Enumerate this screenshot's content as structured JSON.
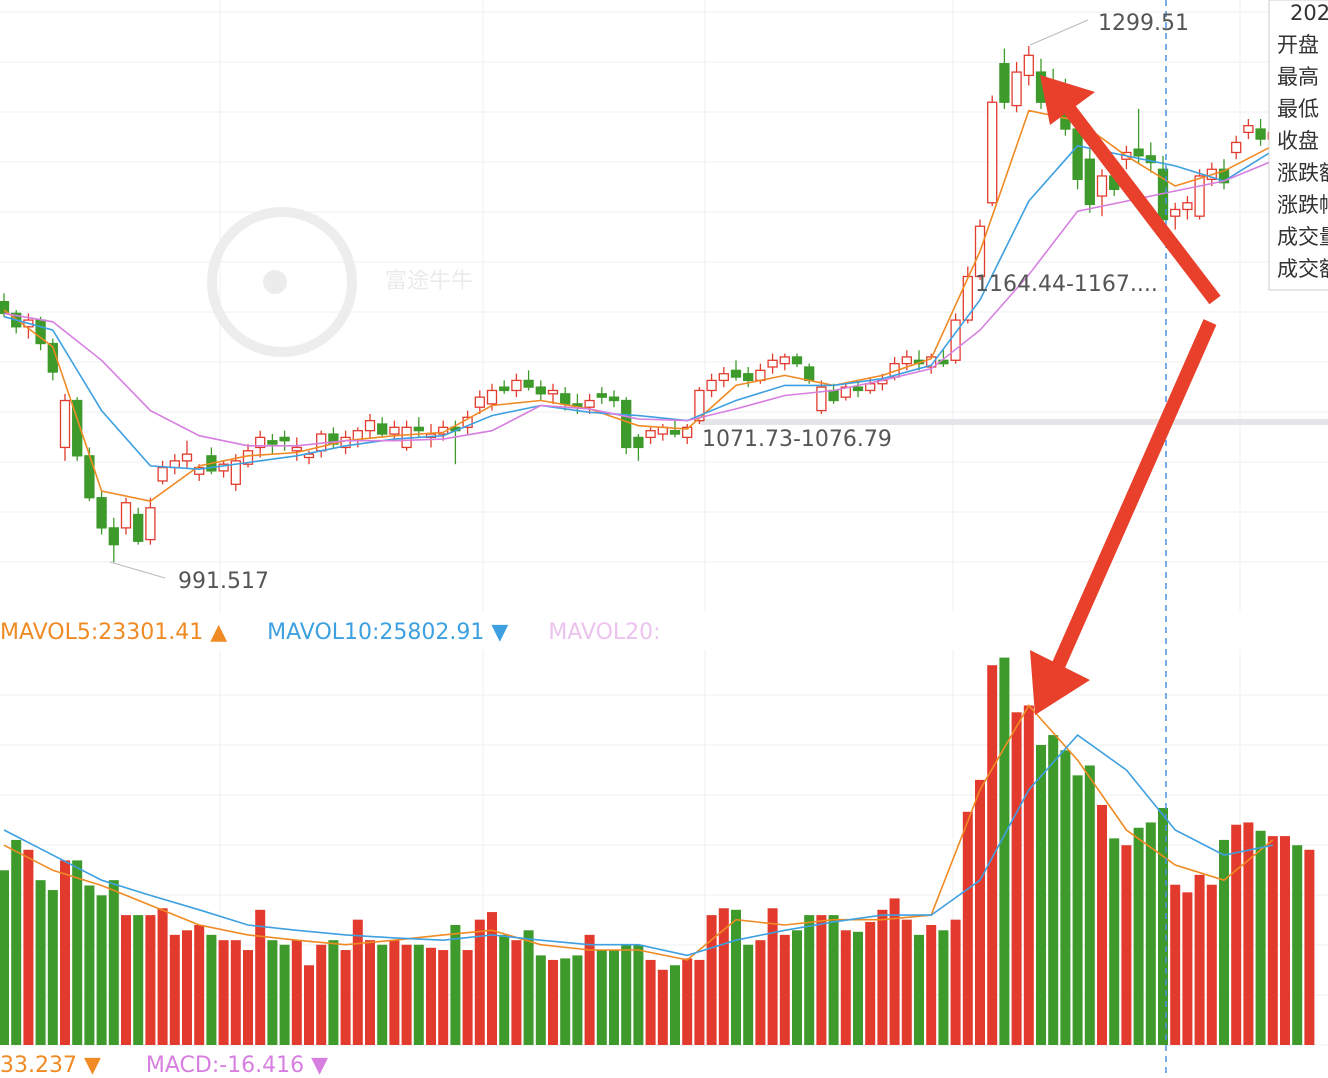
{
  "chart_data": [
    {
      "type": "candlestick",
      "up_color": "#e23b2e",
      "down_color": "#3d9a2b",
      "ylim": [
        963,
        1327
      ],
      "ohlc": [
        [
          1147,
          1152,
          1138,
          1140
        ],
        [
          1140,
          1142,
          1128,
          1132
        ],
        [
          1132,
          1140,
          1125,
          1136
        ],
        [
          1136,
          1138,
          1118,
          1122
        ],
        [
          1122,
          1125,
          1100,
          1105
        ],
        [
          1060,
          1092,
          1052,
          1088
        ],
        [
          1088,
          1090,
          1052,
          1055
        ],
        [
          1055,
          1060,
          1028,
          1030
        ],
        [
          1030,
          1034,
          1008,
          1012
        ],
        [
          1012,
          1018,
          991.517,
          1002
        ],
        [
          1012,
          1030,
          1008,
          1027
        ],
        [
          1020,
          1024,
          1002,
          1004
        ],
        [
          1005,
          1030,
          1002,
          1024
        ],
        [
          1040,
          1052,
          1038,
          1048
        ],
        [
          1048,
          1056,
          1044,
          1052
        ],
        [
          1052,
          1064,
          1048,
          1056
        ],
        [
          1044,
          1050,
          1040,
          1048
        ],
        [
          1055,
          1060,
          1044,
          1046
        ],
        [
          1046,
          1052,
          1042,
          1050
        ],
        [
          1038,
          1056,
          1034,
          1052
        ],
        [
          1050,
          1062,
          1048,
          1058
        ],
        [
          1060,
          1070,
          1054,
          1066
        ],
        [
          1064,
          1068,
          1056,
          1062
        ],
        [
          1066,
          1070,
          1058,
          1064
        ],
        [
          1058,
          1066,
          1052,
          1060
        ],
        [
          1054,
          1058,
          1050,
          1056
        ],
        [
          1058,
          1070,
          1054,
          1068
        ],
        [
          1068,
          1072,
          1060,
          1062
        ],
        [
          1060,
          1070,
          1056,
          1066
        ],
        [
          1064,
          1072,
          1060,
          1070
        ],
        [
          1070,
          1080,
          1066,
          1076
        ],
        [
          1074,
          1078,
          1066,
          1068
        ],
        [
          1068,
          1076,
          1064,
          1072
        ],
        [
          1060,
          1076,
          1058,
          1072
        ],
        [
          1072,
          1078,
          1066,
          1070
        ],
        [
          1066,
          1074,
          1060,
          1068
        ],
        [
          1068,
          1076,
          1064,
          1072
        ],
        [
          1072,
          1076,
          1050,
          1070
        ],
        [
          1072,
          1082,
          1068,
          1078
        ],
        [
          1084,
          1094,
          1080,
          1090
        ],
        [
          1086,
          1098,
          1082,
          1094
        ],
        [
          1096,
          1100,
          1092,
          1094
        ],
        [
          1094,
          1104,
          1090,
          1100
        ],
        [
          1100,
          1106,
          1094,
          1096
        ],
        [
          1096,
          1100,
          1088,
          1092
        ],
        [
          1092,
          1098,
          1086,
          1094
        ],
        [
          1092,
          1096,
          1082,
          1086
        ],
        [
          1086,
          1092,
          1080,
          1084
        ],
        [
          1084,
          1092,
          1080,
          1088
        ],
        [
          1092,
          1096,
          1086,
          1090
        ],
        [
          1090,
          1094,
          1084,
          1088
        ],
        [
          1088,
          1090,
          1056,
          1060
        ],
        [
          1066,
          1068,
          1052,
          1060
        ],
        [
          1066,
          1072,
          1062,
          1070
        ],
        [
          1068,
          1074,
          1064,
          1072
        ],
        [
          1070,
          1076,
          1066,
          1068
        ],
        [
          1066,
          1074,
          1062,
          1072
        ],
        [
          1076,
          1096,
          1074,
          1094
        ],
        [
          1094,
          1104,
          1090,
          1100
        ],
        [
          1100,
          1108,
          1096,
          1104
        ],
        [
          1106,
          1112,
          1100,
          1102
        ],
        [
          1104,
          1108,
          1096,
          1100
        ],
        [
          1100,
          1110,
          1098,
          1106
        ],
        [
          1108,
          1116,
          1104,
          1112
        ],
        [
          1110,
          1116,
          1106,
          1114
        ],
        [
          1114,
          1116,
          1108,
          1110
        ],
        [
          1108,
          1110,
          1098,
          1100
        ],
        [
          1082,
          1100,
          1080,
          1096
        ],
        [
          1094,
          1098,
          1086,
          1088
        ],
        [
          1090,
          1098,
          1088,
          1096
        ],
        [
          1096,
          1100,
          1090,
          1094
        ],
        [
          1094,
          1102,
          1092,
          1098
        ],
        [
          1098,
          1104,
          1094,
          1100
        ],
        [
          1102,
          1114,
          1100,
          1110
        ],
        [
          1110,
          1118,
          1106,
          1114
        ],
        [
          1112,
          1118,
          1106,
          1110
        ],
        [
          1108,
          1116,
          1104,
          1114
        ],
        [
          1112,
          1118,
          1108,
          1110
        ],
        [
          1112,
          1140,
          1110,
          1136
        ],
        [
          1136,
          1168,
          1134,
          1162
        ],
        [
          1162,
          1196,
          1160,
          1192
        ],
        [
          1206,
          1270,
          1204,
          1266
        ],
        [
          1289,
          1298,
          1262,
          1266
        ],
        [
          1264,
          1290,
          1260,
          1284
        ],
        [
          1282,
          1299.51,
          1276,
          1294
        ],
        [
          1284,
          1292,
          1262,
          1266
        ],
        [
          1276,
          1286,
          1260,
          1266
        ],
        [
          1272,
          1280,
          1246,
          1250
        ],
        [
          1250,
          1256,
          1214,
          1220
        ],
        [
          1232,
          1238,
          1200,
          1205
        ],
        [
          1210,
          1226,
          1198,
          1222
        ],
        [
          1222,
          1230,
          1210,
          1214
        ],
        [
          1232,
          1240,
          1226,
          1236
        ],
        [
          1238,
          1262,
          1230,
          1234
        ],
        [
          1234,
          1242,
          1224,
          1230
        ],
        [
          1226,
          1234,
          1190,
          1196
        ],
        [
          1198,
          1206,
          1190,
          1202
        ],
        [
          1202,
          1210,
          1196,
          1206
        ],
        [
          1198,
          1226,
          1196,
          1222
        ],
        [
          1220,
          1230,
          1216,
          1226
        ],
        [
          1226,
          1232,
          1214,
          1218
        ],
        [
          1236,
          1246,
          1232,
          1242
        ],
        [
          1248,
          1256,
          1244,
          1252
        ],
        [
          1250,
          1256,
          1240,
          1244
        ],
        [
          1244,
          1252,
          1238,
          1248
        ],
        [
          1250,
          1256,
          1244,
          1252
        ],
        [
          1252,
          1258,
          1246,
          1250
        ],
        [
          1250,
          1256,
          1244,
          1254
        ]
      ],
      "lines": [
        {
          "color": "#f08a24",
          "x": [
            0,
            4,
            8,
            12,
            16,
            20,
            24,
            28,
            32,
            36,
            40,
            44,
            48,
            52,
            56,
            60,
            64,
            68,
            72,
            76,
            80,
            84,
            88,
            92,
            96,
            100,
            104
          ],
          "values": [
            1142,
            1120,
            1034,
            1028,
            1049,
            1055,
            1057,
            1064,
            1067,
            1069,
            1085,
            1088,
            1083,
            1073,
            1071,
            1097,
            1103,
            1097,
            1103,
            1113,
            1177,
            1261,
            1255,
            1234,
            1216,
            1225,
            1240
          ]
        },
        {
          "color": "#3ea0e0",
          "x": [
            0,
            4,
            8,
            12,
            16,
            20,
            24,
            28,
            32,
            36,
            40,
            44,
            48,
            52,
            56,
            60,
            64,
            68,
            72,
            76,
            80,
            84,
            88,
            92,
            96,
            100,
            104
          ],
          "values": [
            1138,
            1130,
            1082,
            1049,
            1047,
            1051,
            1055,
            1061,
            1065,
            1067,
            1079,
            1085,
            1081,
            1079,
            1076,
            1088,
            1097,
            1097,
            1101,
            1109,
            1148,
            1207,
            1240,
            1234,
            1228,
            1219,
            1237
          ]
        },
        {
          "color": "#d77fe0",
          "x": [
            0,
            4,
            8,
            12,
            16,
            20,
            24,
            28,
            32,
            36,
            40,
            44,
            48,
            52,
            56,
            60,
            64,
            68,
            72,
            76,
            80,
            84,
            88,
            92,
            96,
            100,
            104
          ],
          "values": [
            1140,
            1135,
            1112,
            1082,
            1067,
            1061,
            1061,
            1064,
            1064,
            1065,
            1070,
            1085,
            1083,
            1077,
            1076,
            1083,
            1091,
            1094,
            1100,
            1107,
            1130,
            1163,
            1201,
            1207,
            1213,
            1219,
            1231
          ]
        }
      ],
      "annotations": [
        "1299.51",
        "991.517",
        "1164.44-1167....",
        "1071.73-1076.79"
      ]
    },
    {
      "type": "bar",
      "ylim": [
        0,
        52000
      ],
      "values": [
        23000,
        27000,
        25700,
        21700,
        20400,
        24300,
        24300,
        21000,
        19700,
        21700,
        17100,
        17100,
        17100,
        18000,
        14500,
        15100,
        15800,
        14500,
        13800,
        13800,
        12500,
        17800,
        13800,
        13200,
        13800,
        10500,
        13200,
        13800,
        12500,
        16500,
        13800,
        13200,
        13800,
        13200,
        13200,
        12800,
        12500,
        15800,
        12500,
        16500,
        17500,
        14500,
        13800,
        15100,
        11800,
        11200,
        11400,
        11800,
        14500,
        12500,
        12500,
        13200,
        13200,
        11200,
        9900,
        10500,
        11400,
        11200,
        17100,
        18000,
        17800,
        13200,
        13800,
        18000,
        14500,
        15100,
        17100,
        17100,
        17100,
        15100,
        14900,
        16200,
        17800,
        19300,
        16500,
        14500,
        15800,
        15100,
        16500,
        30700,
        34900,
        50000,
        51000,
        43800,
        44700,
        39500,
        40800,
        38800,
        35500,
        36800,
        31600,
        27200,
        26300,
        28600,
        29300,
        31200,
        21100,
        20100,
        22400,
        21100,
        27000,
        29000,
        29300,
        28200,
        27500,
        27500,
        26300,
        25700
      ],
      "lines": [
        {
          "color": "#f08a24",
          "x": [
            0,
            4,
            8,
            12,
            16,
            20,
            24,
            28,
            32,
            36,
            40,
            44,
            48,
            52,
            56,
            60,
            64,
            68,
            72,
            76,
            80,
            84,
            88,
            92,
            96,
            100,
            104
          ],
          "values": [
            26300,
            23000,
            21000,
            18400,
            15800,
            14500,
            13800,
            13200,
            13800,
            14500,
            15100,
            13200,
            12500,
            12500,
            11200,
            16500,
            15800,
            16500,
            16500,
            17100,
            33600,
            44700,
            37500,
            28300,
            23700,
            21700,
            27000
          ]
        },
        {
          "color": "#3ea0e0",
          "x": [
            0,
            4,
            8,
            12,
            16,
            20,
            24,
            28,
            32,
            36,
            40,
            44,
            48,
            52,
            56,
            60,
            64,
            68,
            72,
            76,
            80,
            84,
            88,
            92,
            96,
            100,
            104
          ],
          "values": [
            28300,
            25000,
            21700,
            19700,
            17800,
            15800,
            15100,
            14500,
            14100,
            13800,
            14500,
            13800,
            13200,
            13200,
            11800,
            13800,
            15100,
            16200,
            17100,
            17100,
            21700,
            33600,
            40800,
            36200,
            28300,
            25000,
            26300
          ]
        }
      ],
      "legend": [
        {
          "label": "MAVOL5:23301.41 ▲",
          "color": "#f08a24"
        },
        {
          "label": "MAVOL10:25802.91 ▼",
          "color": "#3ea0e0"
        },
        {
          "label": "MAVOL20:",
          "color": "#ecc2ee"
        }
      ],
      "footer": [
        {
          "label": "33.237 ▼",
          "color": "#f08a24"
        },
        {
          "label": "MACD:-16.416 ▼",
          "color": "#d77fe0"
        }
      ]
    }
  ],
  "watermark": "富途牛牛",
  "tooltip": [
    "202",
    "开盘",
    "最高",
    "最低",
    "收盘",
    "涨跌额",
    "涨跌幅",
    "成交量",
    "成交额"
  ]
}
